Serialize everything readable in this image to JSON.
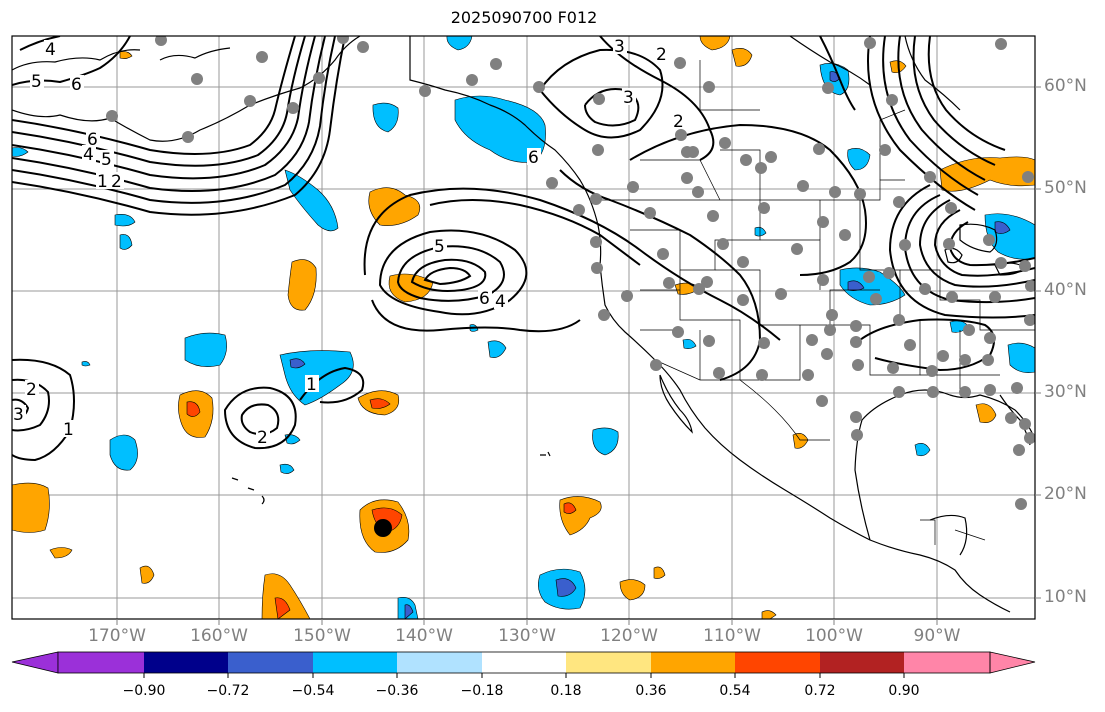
{
  "title": "2025090700 F012",
  "latitude_labels": [
    "60°N",
    "50°N",
    "40°N",
    "30°N",
    "20°N",
    "10°N"
  ],
  "longitude_labels": [
    "170°W",
    "160°W",
    "150°W",
    "140°W",
    "130°W",
    "120°W",
    "110°W",
    "100°W",
    "90°W"
  ],
  "colorbar": {
    "tick_labels": [
      "−0.90",
      "−0.72",
      "−0.54",
      "−0.36",
      "−0.18",
      "0.18",
      "0.36",
      "0.54",
      "0.72",
      "0.90"
    ],
    "colors": [
      "#9b30d9",
      "#00008b",
      "#3a5fcd",
      "#00bfff",
      "#b0e2ff",
      "#ffffff",
      "#ffe680",
      "#ffa500",
      "#ff4500",
      "#b22222",
      "#ff85a8"
    ]
  },
  "contour_labels": [
    "5",
    "6",
    "6",
    "4",
    "5",
    "1",
    "2",
    "4",
    "3",
    "2",
    "6",
    "5",
    "4",
    "6",
    "1",
    "2",
    "2",
    "3",
    "1",
    "2",
    "3"
  ],
  "colors": {
    "land_outline": "#000000",
    "grid": "#999999",
    "station_marker": "#808080",
    "storm_marker": "#000000"
  }
}
